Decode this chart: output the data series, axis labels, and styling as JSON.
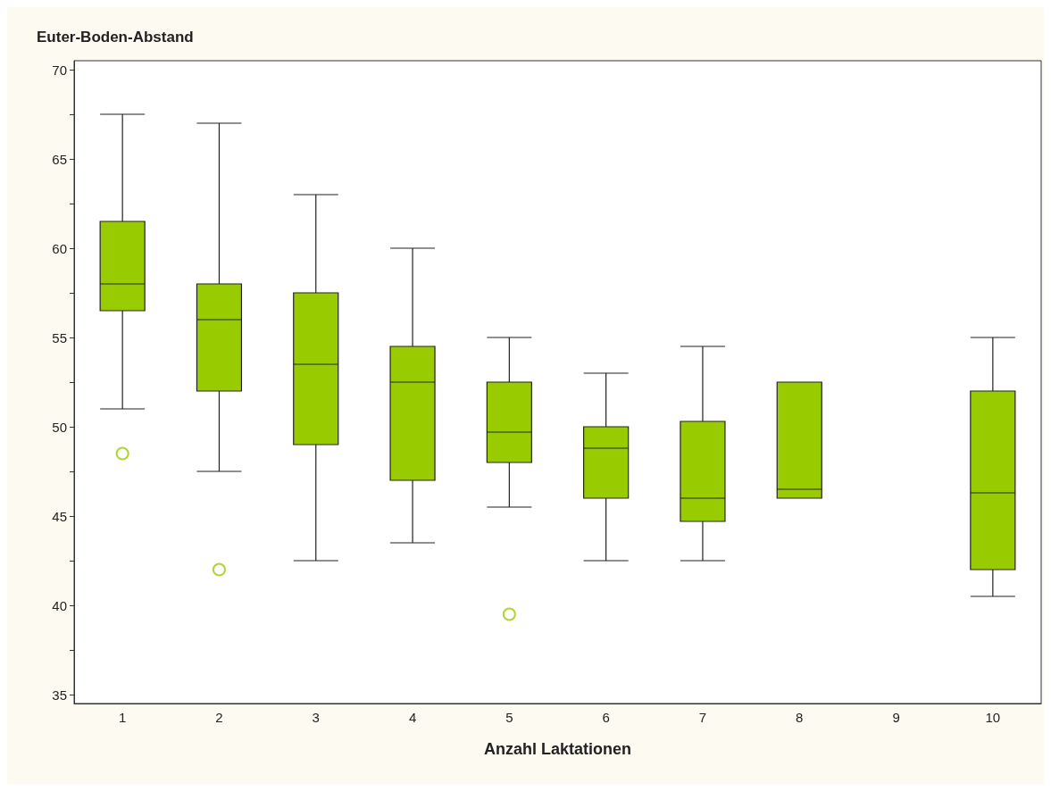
{
  "chart_data": {
    "type": "box",
    "title": "Euter-Boden-Abstand",
    "xlabel": "Anzahl Laktationen",
    "categories": [
      "1",
      "2",
      "3",
      "4",
      "5",
      "6",
      "7",
      "8",
      "9",
      "10"
    ],
    "ylim": [
      34.5,
      70.5
    ],
    "yticks": [
      35,
      {
        "value": 37.5,
        "label": null
      },
      40,
      {
        "value": 42.5,
        "label": null
      },
      45,
      {
        "value": 47.5,
        "label": null
      },
      50,
      {
        "value": 52.5,
        "label": null
      },
      55,
      {
        "value": 57.5,
        "label": null
      },
      60,
      {
        "value": 62.5,
        "label": null
      },
      65,
      {
        "value": 67.5,
        "label": null
      },
      70
    ],
    "grid": false,
    "series": [
      {
        "color": "#99cc00",
        "boxes": [
          {
            "low": 51.0,
            "q1": 56.5,
            "median": 58.0,
            "q3": 61.5,
            "high": 67.5,
            "outliers": [
              48.5
            ]
          },
          {
            "low": 47.5,
            "q1": 52.0,
            "median": 56.0,
            "q3": 58.0,
            "high": 67.0,
            "outliers": [
              42.0
            ]
          },
          {
            "low": 42.5,
            "q1": 49.0,
            "median": 53.5,
            "q3": 57.5,
            "high": 63.0
          },
          {
            "low": 43.5,
            "q1": 47.0,
            "median": 52.5,
            "q3": 54.5,
            "high": 60.0
          },
          {
            "low": 45.5,
            "q1": 48.0,
            "median": 49.7,
            "q3": 52.5,
            "high": 55.0,
            "outliers": [
              39.5
            ]
          },
          {
            "low": 42.5,
            "q1": 46.0,
            "median": 48.8,
            "q3": 50.0,
            "high": 53.0
          },
          {
            "low": 42.5,
            "q1": 44.7,
            "median": 46.0,
            "q3": 50.3,
            "high": 54.5
          },
          {
            "low": 46.0,
            "q1": 46.0,
            "median": 46.5,
            "q3": 52.5,
            "high": 52.5
          },
          null,
          {
            "low": 40.5,
            "q1": 42.0,
            "median": 46.3,
            "q3": 52.0,
            "high": 55.0
          }
        ]
      }
    ]
  }
}
